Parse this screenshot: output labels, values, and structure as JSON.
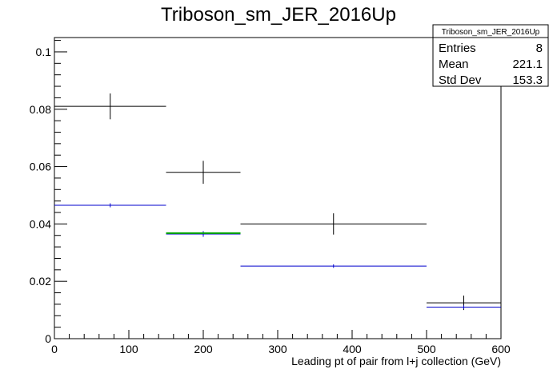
{
  "chart_data": {
    "type": "scatter",
    "title": "Triboson_sm_JER_2016Up",
    "xlabel": "Leading pt of pair from l+j collection (GeV)",
    "ylabel": "",
    "xlim": [
      0,
      600
    ],
    "ylim": [
      0,
      0.105
    ],
    "x_ticks": [
      0,
      100,
      200,
      300,
      400,
      500,
      600
    ],
    "x_tick_labels": [
      "0",
      "100",
      "200",
      "300",
      "400",
      "500",
      "600"
    ],
    "y_ticks": [
      0,
      0.02,
      0.04,
      0.06,
      0.08,
      0.1
    ],
    "y_tick_labels": [
      "0",
      "0.02",
      "0.04",
      "0.06",
      "0.08",
      "0.1"
    ],
    "grid": false,
    "legend_position": "none",
    "series": [
      {
        "color": "#000000",
        "points": [
          {
            "x": 75,
            "xlow": 0,
            "xhigh": 150,
            "y": 0.081,
            "err": 0.0045
          },
          {
            "x": 200,
            "xlow": 150,
            "xhigh": 250,
            "y": 0.058,
            "err": 0.004
          },
          {
            "x": 375,
            "xlow": 250,
            "xhigh": 500,
            "y": 0.04,
            "err": 0.0037
          },
          {
            "x": 550,
            "xlow": 500,
            "xhigh": 600,
            "y": 0.0125,
            "err": 0.0025
          }
        ]
      },
      {
        "color": "#0000cc",
        "points": [
          {
            "x": 75,
            "xlow": 0,
            "xhigh": 150,
            "y": 0.0465,
            "err": 0.0007
          },
          {
            "x": 200,
            "xlow": 150,
            "xhigh": 250,
            "y": 0.0365,
            "err": 0.001
          },
          {
            "x": 375,
            "xlow": 250,
            "xhigh": 500,
            "y": 0.0253,
            "err": 0.0006
          },
          {
            "x": 550,
            "xlow": 500,
            "xhigh": 600,
            "y": 0.011,
            "err": 0.0006
          }
        ]
      },
      {
        "color": "#00aa00",
        "points": [
          {
            "x": 200,
            "xlow": 150,
            "xhigh": 250,
            "y": 0.0368,
            "err": 0.0
          }
        ]
      }
    ],
    "stats_box": {
      "title": "Triboson_sm_JER_2016Up",
      "rows": [
        {
          "label": "Entries",
          "value": "8"
        },
        {
          "label": "Mean",
          "value": "221.1"
        },
        {
          "label": "Std Dev",
          "value": "153.3"
        }
      ]
    }
  }
}
